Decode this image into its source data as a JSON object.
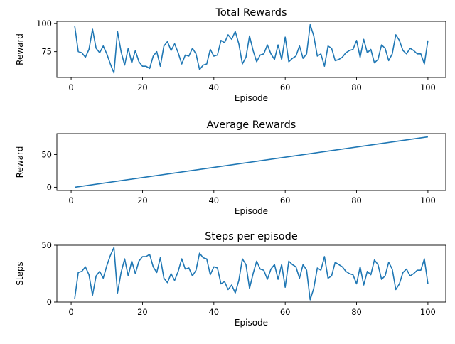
{
  "chart_data": [
    {
      "type": "line",
      "title": "Total Rewards",
      "xlabel": "Episode",
      "ylabel": "Reward",
      "xlim": [
        -4,
        105
      ],
      "ylim": [
        52,
        102
      ],
      "xticks": [
        0,
        20,
        40,
        60,
        80,
        100
      ],
      "yticks": [
        75,
        100
      ],
      "color": "#1f77b4",
      "series": [
        {
          "x": [
            1,
            2,
            3,
            4,
            5,
            6,
            7,
            8,
            9,
            10,
            11,
            12,
            13,
            14,
            15,
            16,
            17,
            18,
            19,
            20,
            21,
            22,
            23,
            24,
            25,
            26,
            27,
            28,
            29,
            30,
            31,
            32,
            33,
            34,
            35,
            36,
            37,
            38,
            39,
            40,
            41,
            42,
            43,
            44,
            45,
            46,
            47,
            48,
            49,
            50,
            51,
            52,
            53,
            54,
            55,
            56,
            57,
            58,
            59,
            60,
            61,
            62,
            63,
            64,
            65,
            66,
            67,
            68,
            69,
            70,
            71,
            72,
            73,
            74,
            75,
            76,
            77,
            78,
            79,
            80,
            81,
            82,
            83,
            84,
            85,
            86,
            87,
            88,
            89,
            90,
            91,
            92,
            93,
            94,
            95,
            96,
            97,
            98,
            99,
            100
          ],
          "values": [
            98,
            75,
            74,
            70,
            77,
            95,
            78,
            74,
            80,
            73,
            64,
            56,
            93,
            75,
            63,
            78,
            65,
            76,
            66,
            62,
            62,
            60,
            71,
            75,
            62,
            80,
            84,
            76,
            82,
            74,
            64,
            72,
            71,
            78,
            73,
            59,
            63,
            64,
            77,
            71,
            72,
            85,
            83,
            90,
            86,
            93,
            82,
            64,
            70,
            89,
            76,
            66,
            72,
            73,
            81,
            73,
            68,
            81,
            68,
            88,
            66,
            69,
            71,
            80,
            69,
            73,
            99,
            89,
            71,
            73,
            62,
            80,
            78,
            67,
            68,
            70,
            74,
            76,
            77,
            85,
            70,
            86,
            74,
            77,
            65,
            68,
            81,
            78,
            67,
            73,
            90,
            85,
            76,
            73,
            78,
            76,
            73,
            73,
            64,
            85
          ]
        }
      ]
    },
    {
      "type": "line",
      "title": "Average Rewards",
      "xlabel": "Episode",
      "ylabel": "Reward",
      "xlim": [
        -4,
        105
      ],
      "ylim": [
        -5,
        82
      ],
      "xticks": [
        0,
        20,
        40,
        60,
        80,
        100
      ],
      "yticks": [
        0,
        50
      ],
      "color": "#1f77b4",
      "series": [
        {
          "x": [
            1,
            100
          ],
          "values": [
            0,
            77
          ]
        }
      ]
    },
    {
      "type": "line",
      "title": "Steps per episode",
      "xlabel": "Episode",
      "ylabel": "Steps",
      "xlim": [
        -4,
        105
      ],
      "ylim": [
        0,
        50
      ],
      "xticks": [
        0,
        20,
        40,
        60,
        80,
        100
      ],
      "yticks": [
        0,
        50
      ],
      "color": "#1f77b4",
      "series": [
        {
          "x": [
            1,
            2,
            3,
            4,
            5,
            6,
            7,
            8,
            9,
            10,
            11,
            12,
            13,
            14,
            15,
            16,
            17,
            18,
            19,
            20,
            21,
            22,
            23,
            24,
            25,
            26,
            27,
            28,
            29,
            30,
            31,
            32,
            33,
            34,
            35,
            36,
            37,
            38,
            39,
            40,
            41,
            42,
            43,
            44,
            45,
            46,
            47,
            48,
            49,
            50,
            51,
            52,
            53,
            54,
            55,
            56,
            57,
            58,
            59,
            60,
            61,
            62,
            63,
            64,
            65,
            66,
            67,
            68,
            69,
            70,
            71,
            72,
            73,
            74,
            75,
            76,
            77,
            78,
            79,
            80,
            81,
            82,
            83,
            84,
            85,
            86,
            87,
            88,
            89,
            90,
            91,
            92,
            93,
            94,
            95,
            96,
            97,
            98,
            99,
            100
          ],
          "values": [
            3,
            26,
            27,
            31,
            24,
            6,
            23,
            27,
            21,
            32,
            41,
            48,
            8,
            26,
            38,
            23,
            36,
            25,
            36,
            40,
            40,
            42,
            31,
            26,
            39,
            21,
            17,
            25,
            19,
            27,
            38,
            29,
            30,
            23,
            28,
            43,
            39,
            38,
            24,
            31,
            30,
            16,
            18,
            11,
            15,
            8,
            19,
            38,
            33,
            12,
            25,
            36,
            29,
            28,
            20,
            29,
            33,
            20,
            33,
            13,
            36,
            33,
            31,
            21,
            33,
            28,
            2,
            12,
            30,
            28,
            40,
            21,
            23,
            35,
            33,
            31,
            27,
            25,
            24,
            16,
            31,
            15,
            27,
            24,
            37,
            33,
            20,
            23,
            35,
            29,
            11,
            16,
            26,
            29,
            23,
            25,
            28,
            28,
            38,
            16
          ]
        }
      ]
    }
  ]
}
